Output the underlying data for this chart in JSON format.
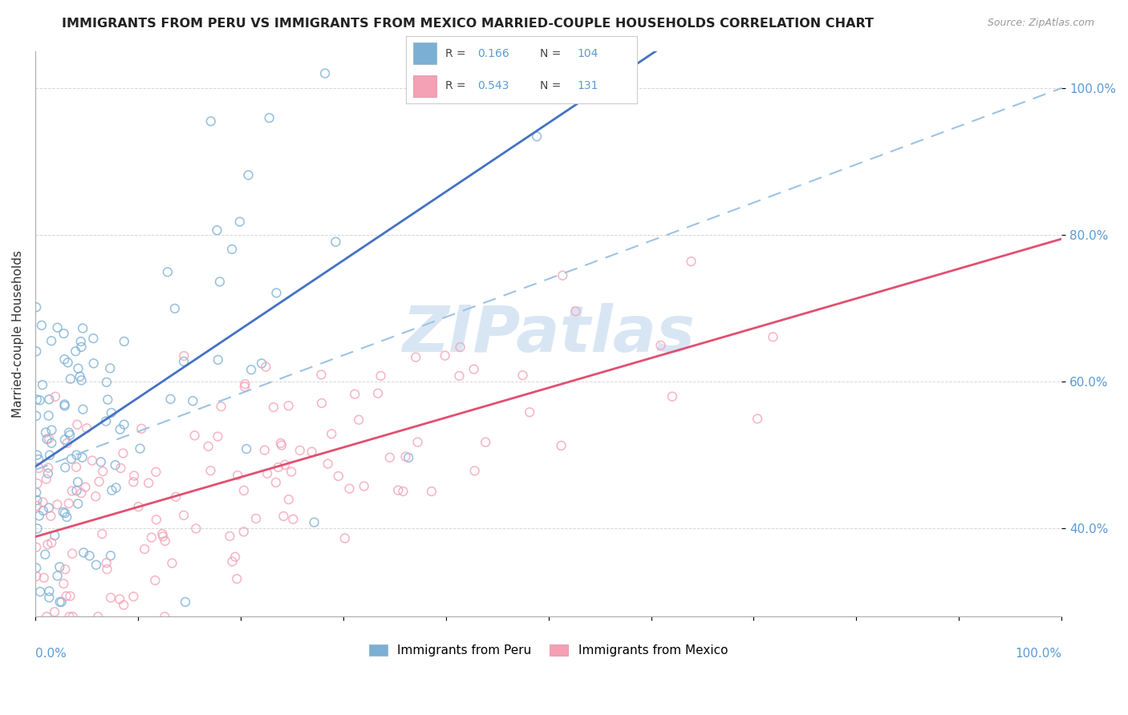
{
  "title": "IMMIGRANTS FROM PERU VS IMMIGRANTS FROM MEXICO MARRIED-COUPLE HOUSEHOLDS CORRELATION CHART",
  "source": "Source: ZipAtlas.com",
  "ylabel": "Married-couple Households",
  "legend_label1": "Immigrants from Peru",
  "legend_label2": "Immigrants from Mexico",
  "R1": 0.166,
  "N1": 104,
  "R2": 0.543,
  "N2": 131,
  "color_peru": "#7BAFD4",
  "color_mexico": "#F4A0B5",
  "trendline_peru_color": "#4472C4",
  "trendline_mexico_color": "#E05070",
  "dashed_line_color": "#9DC3E6",
  "watermark_text": "ZIPatlas",
  "watermark_color": "#C8DCF0",
  "background_color": "#FFFFFF",
  "grid_color": "#CCCCCC",
  "xlim": [
    0.0,
    1.0
  ],
  "ylim": [
    0.28,
    1.05
  ],
  "ytick_positions": [
    0.4,
    0.6,
    0.8,
    1.0
  ],
  "ytick_labels": [
    "40.0%",
    "60.0%",
    "80.0%",
    "100.0%"
  ]
}
